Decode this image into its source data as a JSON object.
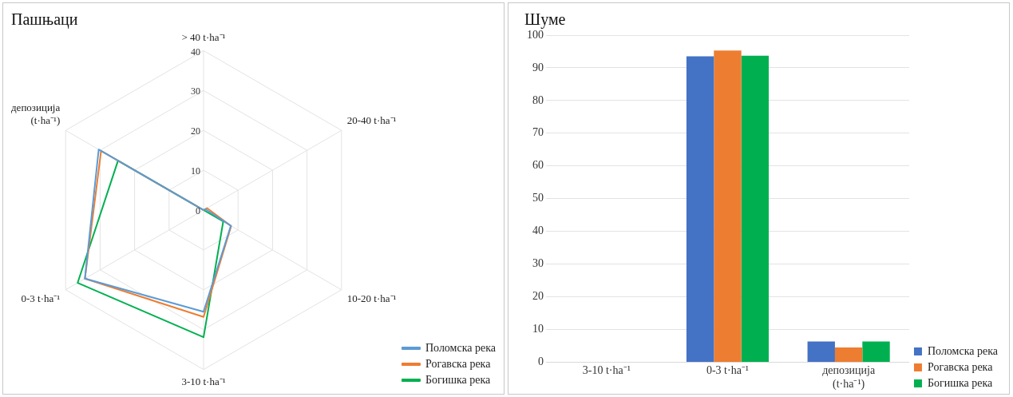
{
  "chart_data": [
    {
      "type": "radar",
      "title": "Пашњаци",
      "categories": [
        "> 40 t·ha⁻¹",
        "20-40 t·ha⁻¹",
        "10-20 t·ha⁻¹",
        "3-10 t·ha⁻¹",
        "0-3 t·ha⁻¹",
        "депозиција (t·ha⁻¹)"
      ],
      "series": [
        {
          "name": "Поломска река",
          "color": "#5b9bd5",
          "values": [
            0,
            0.5,
            7.9,
            25.5,
            34.4,
            30.4
          ]
        },
        {
          "name": "Рогавска река",
          "color": "#ed7d31",
          "values": [
            0,
            1,
            8,
            26.8,
            34.4,
            29.7
          ]
        },
        {
          "name": "Богишка река",
          "color": "#00b050",
          "values": [
            0,
            0,
            5.7,
            31.9,
            36.5,
            24.8
          ]
        }
      ],
      "ylim": [
        0,
        40
      ],
      "yticks": [
        0,
        10,
        20,
        30,
        40
      ],
      "grid": true,
      "legend": "bottom right",
      "marker": "none",
      "line_style": "solid"
    },
    {
      "type": "bar",
      "title": "Шуме",
      "categories": [
        "3-10 t·ha⁻¹",
        "0-3 t·ha⁻¹",
        "депозиција (t·ha⁻¹)"
      ],
      "series": [
        {
          "name": "Поломска река",
          "color": "#4472c4",
          "values": [
            0,
            93.5,
            6.3
          ]
        },
        {
          "name": "Рогавска река",
          "color": "#ed7d31",
          "values": [
            0,
            95.3,
            4.5
          ]
        },
        {
          "name": "Богишка река",
          "color": "#00b050",
          "values": [
            0,
            93.7,
            6.3
          ]
        }
      ],
      "ylim": [
        0,
        100
      ],
      "yticks": [
        0,
        10,
        20,
        30,
        40,
        50,
        60,
        70,
        80,
        90,
        100
      ],
      "grid": "y",
      "legend": "bottom right"
    }
  ]
}
